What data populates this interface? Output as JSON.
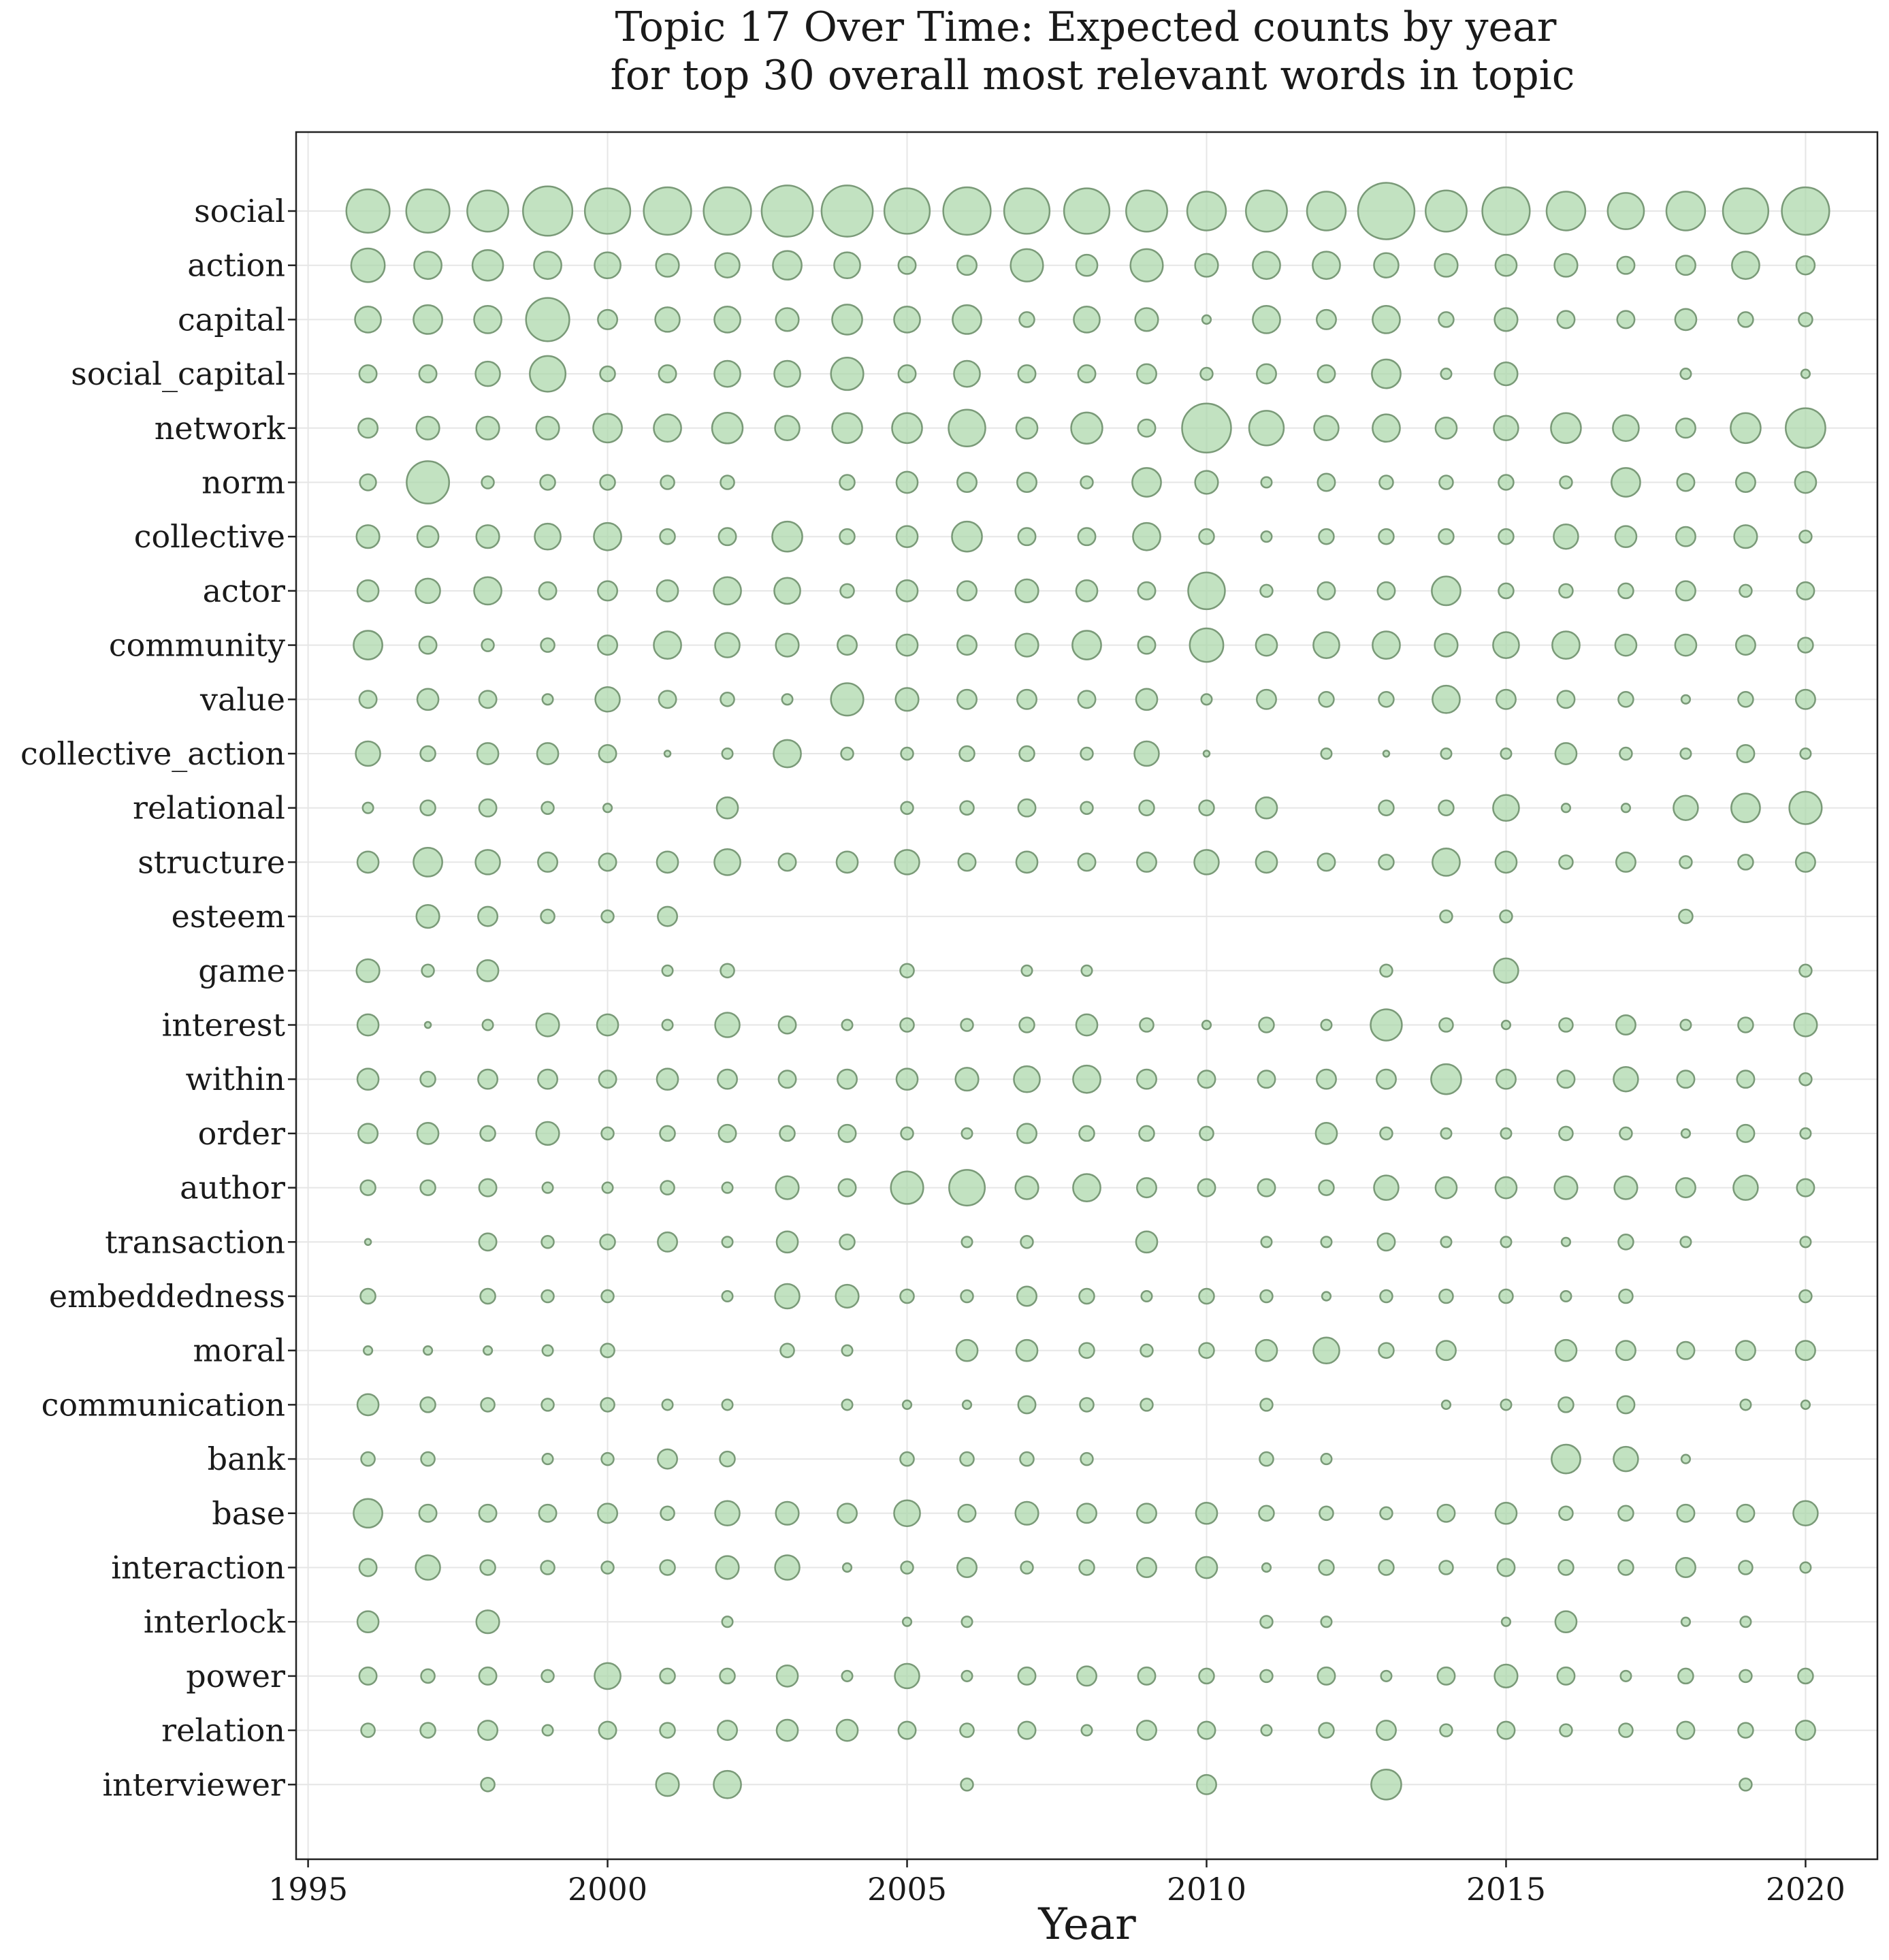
{
  "chart_data": {
    "type": "scatter",
    "title": "Topic 17 Over Time: Expected counts by year",
    "subtitle": "for top 30 overall most relevant words in topic",
    "xlabel": "Year",
    "ylabel": "",
    "xlim": [
      1994.8,
      2021.2
    ],
    "xticks": [
      1995,
      2000,
      2005,
      2010,
      2015,
      2020
    ],
    "years": [
      1996,
      1997,
      1998,
      1999,
      2000,
      2001,
      2002,
      2003,
      2004,
      2005,
      2006,
      2007,
      2008,
      2009,
      2010,
      2011,
      2012,
      2013,
      2014,
      2015,
      2016,
      2017,
      2018,
      2019,
      2020
    ],
    "words": [
      "social",
      "action",
      "capital",
      "social_capital",
      "network",
      "norm",
      "collective",
      "actor",
      "community",
      "value",
      "collective_action",
      "relational",
      "structure",
      "esteem",
      "game",
      "interest",
      "within",
      "order",
      "author",
      "transaction",
      "embeddedness",
      "moral",
      "communication",
      "bank",
      "base",
      "interaction",
      "interlock",
      "power",
      "relation",
      "interviewer"
    ],
    "grid": true,
    "legend": "none",
    "marker_color": "#a8d5a6",
    "marker_edge_color": "#7a9a78",
    "size_encoding": "marker size proportional to expected count (relative scale 0-100)",
    "sizes": [
      [
        50,
        50,
        45,
        65,
        55,
        60,
        60,
        70,
        70,
        55,
        60,
        55,
        55,
        45,
        40,
        45,
        40,
        85,
        45,
        60,
        40,
        35,
        40,
        55,
        60
      ],
      [
        30,
        20,
        25,
        20,
        18,
        14,
        16,
        22,
        18,
        8,
        10,
        28,
        12,
        28,
        14,
        20,
        20,
        16,
        14,
        12,
        14,
        8,
        10,
        20,
        9
      ],
      [
        18,
        22,
        20,
        50,
        10,
        16,
        18,
        14,
        24,
        18,
        22,
        6,
        18,
        14,
        2,
        20,
        10,
        20,
        6,
        14,
        8,
        8,
        12,
        6,
        5
      ],
      [
        8,
        8,
        16,
        34,
        6,
        8,
        18,
        18,
        28,
        8,
        18,
        8,
        8,
        10,
        4,
        10,
        8,
        22,
        3,
        14,
        0,
        0,
        3,
        0,
        2
      ],
      [
        10,
        14,
        14,
        14,
        22,
        20,
        25,
        16,
        24,
        24,
        36,
        12,
        26,
        8,
        64,
        32,
        16,
        20,
        12,
        16,
        24,
        18,
        10,
        24,
        42
      ],
      [
        7,
        48,
        4,
        6,
        6,
        5,
        5,
        0,
        6,
        12,
        10,
        10,
        4,
        22,
        14,
        3,
        8,
        5,
        5,
        6,
        4,
        22,
        8,
        10,
        12
      ],
      [
        14,
        12,
        14,
        18,
        20,
        6,
        8,
        24,
        6,
        12,
        24,
        8,
        8,
        20,
        6,
        3,
        6,
        6,
        6,
        6,
        16,
        12,
        10,
        14,
        4
      ],
      [
        12,
        16,
        20,
        8,
        10,
        12,
        20,
        18,
        5,
        12,
        10,
        14,
        12,
        8,
        36,
        4,
        8,
        8,
        22,
        6,
        5,
        6,
        10,
        4,
        8
      ],
      [
        22,
        8,
        4,
        5,
        10,
        20,
        16,
        14,
        10,
        12,
        10,
        14,
        22,
        8,
        30,
        12,
        18,
        20,
        14,
        18,
        20,
        12,
        12,
        10,
        6
      ],
      [
        8,
        12,
        8,
        3,
        16,
        8,
        5,
        3,
        28,
        14,
        10,
        10,
        8,
        12,
        3,
        10,
        6,
        6,
        20,
        10,
        8,
        6,
        2,
        6,
        10
      ],
      [
        16,
        6,
        12,
        12,
        8,
        1,
        3,
        20,
        4,
        4,
        6,
        6,
        4,
        16,
        1,
        0,
        3,
        1,
        3,
        3,
        12,
        4,
        3,
        8,
        3
      ],
      [
        3,
        6,
        8,
        4,
        2,
        0,
        12,
        0,
        0,
        4,
        5,
        8,
        4,
        6,
        6,
        12,
        0,
        6,
        6,
        18,
        2,
        2,
        16,
        22,
        28
      ],
      [
        12,
        22,
        16,
        10,
        8,
        12,
        18,
        8,
        12,
        16,
        8,
        12,
        8,
        10,
        16,
        12,
        8,
        6,
        20,
        12,
        5,
        10,
        4,
        6,
        10
      ],
      [
        0,
        14,
        10,
        5,
        4,
        10,
        0,
        0,
        0,
        0,
        0,
        0,
        0,
        0,
        0,
        0,
        0,
        0,
        4,
        4,
        0,
        0,
        5,
        0,
        0
      ],
      [
        14,
        4,
        12,
        0,
        0,
        3,
        5,
        0,
        0,
        5,
        0,
        3,
        3,
        0,
        0,
        0,
        0,
        4,
        0,
        16,
        0,
        0,
        0,
        0,
        4
      ],
      [
        12,
        1,
        3,
        14,
        12,
        3,
        16,
        8,
        3,
        5,
        4,
        6,
        12,
        5,
        2,
        6,
        3,
        26,
        5,
        2,
        5,
        10,
        3,
        6,
        14
      ],
      [
        12,
        6,
        10,
        10,
        8,
        12,
        10,
        8,
        10,
        12,
        14,
        18,
        20,
        10,
        8,
        8,
        10,
        10,
        24,
        10,
        8,
        16,
        8,
        8,
        4
      ],
      [
        10,
        12,
        6,
        14,
        4,
        6,
        8,
        6,
        8,
        4,
        3,
        10,
        6,
        6,
        5,
        0,
        12,
        4,
        3,
        3,
        5,
        4,
        2,
        8,
        3
      ],
      [
        6,
        6,
        8,
        3,
        3,
        5,
        3,
        14,
        8,
        28,
        34,
        14,
        20,
        10,
        8,
        8,
        6,
        16,
        12,
        12,
        14,
        14,
        10,
        16,
        8
      ],
      [
        1,
        0,
        8,
        4,
        6,
        10,
        3,
        12,
        6,
        0,
        3,
        4,
        0,
        12,
        0,
        3,
        3,
        8,
        3,
        3,
        2,
        6,
        3,
        0,
        3
      ],
      [
        6,
        0,
        6,
        4,
        4,
        0,
        3,
        16,
        14,
        5,
        4,
        10,
        6,
        3,
        6,
        4,
        2,
        4,
        5,
        5,
        3,
        5,
        0,
        0,
        4
      ],
      [
        2,
        2,
        2,
        3,
        5,
        0,
        0,
        5,
        3,
        0,
        12,
        12,
        6,
        4,
        6,
        12,
        18,
        6,
        10,
        0,
        12,
        10,
        8,
        10,
        10
      ],
      [
        12,
        6,
        5,
        4,
        5,
        3,
        3,
        0,
        3,
        2,
        2,
        8,
        5,
        4,
        0,
        4,
        0,
        0,
        2,
        3,
        6,
        8,
        0,
        3,
        2
      ],
      [
        5,
        5,
        0,
        3,
        4,
        10,
        6,
        0,
        0,
        5,
        5,
        5,
        4,
        0,
        0,
        5,
        3,
        0,
        0,
        0,
        22,
        16,
        2,
        0,
        0
      ],
      [
        22,
        8,
        8,
        8,
        10,
        5,
        16,
        14,
        10,
        18,
        8,
        14,
        10,
        10,
        12,
        6,
        5,
        4,
        8,
        12,
        5,
        6,
        8,
        8,
        16
      ],
      [
        8,
        16,
        6,
        5,
        4,
        6,
        14,
        16,
        2,
        4,
        10,
        4,
        6,
        10,
        12,
        2,
        6,
        6,
        5,
        8,
        6,
        6,
        10,
        5,
        3
      ],
      [
        12,
        0,
        14,
        0,
        0,
        0,
        3,
        0,
        0,
        2,
        3,
        0,
        0,
        0,
        0,
        4,
        3,
        0,
        0,
        2,
        12,
        0,
        2,
        3,
        0
      ],
      [
        8,
        5,
        8,
        4,
        18,
        6,
        6,
        12,
        3,
        16,
        3,
        8,
        10,
        8,
        6,
        4,
        8,
        3,
        8,
        14,
        8,
        3,
        6,
        4,
        6
      ],
      [
        5,
        6,
        10,
        3,
        8,
        6,
        10,
        12,
        12,
        8,
        5,
        8,
        3,
        10,
        8,
        3,
        6,
        10,
        4,
        8,
        4,
        5,
        8,
        6,
        10
      ],
      [
        0,
        0,
        5,
        0,
        0,
        14,
        20,
        0,
        0,
        0,
        4,
        0,
        0,
        0,
        10,
        0,
        0,
        24,
        0,
        0,
        0,
        0,
        0,
        4,
        0
      ]
    ]
  }
}
